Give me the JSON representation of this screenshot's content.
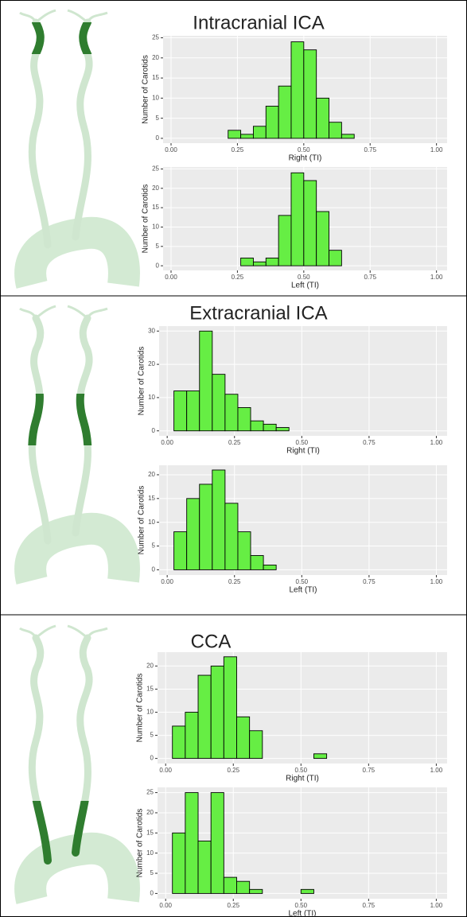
{
  "chart_data": [
    {
      "type": "histogram",
      "title": "Intracranial ICA",
      "xlabel": "Right (TI)",
      "ylabel": "Number of Carotids",
      "bins": [
        0.025,
        0.0725,
        0.12,
        0.1675,
        0.215,
        0.2625,
        0.31,
        0.3575,
        0.405,
        0.4525,
        0.5,
        0.5475,
        0.595,
        0.6425,
        0.69,
        0.7375,
        0.785,
        0.8325,
        0.88,
        0.9275,
        0.975
      ],
      "values": [
        0,
        0,
        0,
        0,
        2,
        1,
        3,
        8,
        13,
        24,
        22,
        10,
        4,
        1,
        0,
        0,
        0,
        0,
        0,
        0
      ],
      "color": "#66ee44",
      "xlim": [
        -0.03,
        1.04
      ],
      "xticks": [
        {
          "value": 0,
          "label": "0.00"
        },
        {
          "value": 0.25,
          "label": "0.25"
        },
        {
          "value": 0.5,
          "label": "0.50"
        },
        {
          "value": 0.75,
          "label": "0.75"
        },
        {
          "value": 1,
          "label": "1.00"
        }
      ],
      "ylim": [
        -1.2,
        25.5
      ],
      "yticks": [
        0,
        5,
        10,
        15,
        20,
        25
      ],
      "grid": true
    },
    {
      "type": "histogram",
      "xlabel": "Left (TI)",
      "ylabel": "Number of Carotids",
      "bins": [
        0.025,
        0.0725,
        0.12,
        0.1675,
        0.215,
        0.2625,
        0.31,
        0.3575,
        0.405,
        0.4525,
        0.5,
        0.5475,
        0.595,
        0.6425,
        0.69,
        0.7375,
        0.785,
        0.8325,
        0.88,
        0.9275,
        0.975
      ],
      "values": [
        0,
        0,
        0,
        0,
        0,
        2,
        1,
        2,
        13,
        24,
        22,
        14,
        4,
        0,
        0,
        0,
        0,
        0,
        0,
        0
      ],
      "color": "#66ee44",
      "xlim": [
        -0.03,
        1.04
      ],
      "xticks": [
        {
          "value": 0,
          "label": "0.00"
        },
        {
          "value": 0.25,
          "label": "0.25"
        },
        {
          "value": 0.5,
          "label": "0.50"
        },
        {
          "value": 0.75,
          "label": "0.75"
        },
        {
          "value": 1,
          "label": "1.00"
        }
      ],
      "ylim": [
        -1.2,
        25.5
      ],
      "yticks": [
        0,
        5,
        10,
        15,
        20,
        25
      ],
      "grid": true
    },
    {
      "type": "histogram",
      "title": "Extracranial ICA",
      "xlabel": "Right (TI)",
      "ylabel": "Number of Carotids",
      "bins": [
        0.025,
        0.0725,
        0.12,
        0.1675,
        0.215,
        0.2625,
        0.31,
        0.3575,
        0.405,
        0.4525,
        0.5,
        0.5475,
        0.595,
        0.6425,
        0.69,
        0.7375,
        0.785,
        0.8325,
        0.88,
        0.9275,
        0.975
      ],
      "values": [
        12,
        12,
        30,
        17,
        11,
        7,
        3,
        2,
        1,
        0,
        0,
        0,
        0,
        0,
        0,
        0,
        0,
        0,
        0,
        0
      ],
      "color": "#66ee44",
      "xlim": [
        -0.03,
        1.04
      ],
      "xticks": [
        {
          "value": 0,
          "label": "0.00"
        },
        {
          "value": 0.25,
          "label": "0.25"
        },
        {
          "value": 0.5,
          "label": "0.50"
        },
        {
          "value": 0.75,
          "label": "0.75"
        },
        {
          "value": 1,
          "label": "1.00"
        }
      ],
      "ylim": [
        -1.5,
        31.5
      ],
      "yticks": [
        0,
        10,
        20,
        30
      ],
      "grid": true
    },
    {
      "type": "histogram",
      "xlabel": "Left (TI)",
      "ylabel": "Number of Carotids",
      "bins": [
        0.025,
        0.0725,
        0.12,
        0.1675,
        0.215,
        0.2625,
        0.31,
        0.3575,
        0.405,
        0.4525,
        0.5,
        0.5475,
        0.595,
        0.6425,
        0.69,
        0.7375,
        0.785,
        0.8325,
        0.88,
        0.9275,
        0.975
      ],
      "values": [
        8,
        15,
        18,
        21,
        14,
        8,
        3,
        1,
        0,
        0,
        0,
        0,
        0,
        0,
        0,
        0,
        0,
        0,
        0,
        0
      ],
      "color": "#66ee44",
      "xlim": [
        -0.03,
        1.04
      ],
      "xticks": [
        {
          "value": 0,
          "label": "0.00"
        },
        {
          "value": 0.25,
          "label": "0.25"
        },
        {
          "value": 0.5,
          "label": "0.50"
        },
        {
          "value": 0.75,
          "label": "0.75"
        },
        {
          "value": 1,
          "label": "1.00"
        }
      ],
      "ylim": [
        -1.1,
        22
      ],
      "yticks": [
        0,
        5,
        10,
        15,
        20
      ],
      "grid": true
    },
    {
      "type": "histogram",
      "title": "CCA",
      "xlabel": "Right (TI)",
      "ylabel": "Number of Carotids",
      "bins": [
        0.025,
        0.0725,
        0.12,
        0.1675,
        0.215,
        0.2625,
        0.31,
        0.3575,
        0.405,
        0.4525,
        0.5,
        0.5475,
        0.595,
        0.6425,
        0.69,
        0.7375,
        0.785,
        0.8325,
        0.88,
        0.9275,
        0.975
      ],
      "values": [
        7,
        10,
        18,
        20,
        22,
        9,
        6,
        0,
        0,
        0,
        0,
        1,
        0,
        0,
        0,
        0,
        0,
        0,
        0,
        0
      ],
      "color": "#66ee44",
      "xlim": [
        -0.03,
        1.04
      ],
      "xticks": [
        {
          "value": 0,
          "label": "0.00"
        },
        {
          "value": 0.25,
          "label": "0.25"
        },
        {
          "value": 0.5,
          "label": "0.50"
        },
        {
          "value": 0.75,
          "label": "0.75"
        },
        {
          "value": 1,
          "label": "1.00"
        }
      ],
      "ylim": [
        -1.1,
        23
      ],
      "yticks": [
        0,
        5,
        10,
        15,
        20
      ],
      "grid": true
    },
    {
      "type": "histogram",
      "xlabel": "Left (TI)",
      "ylabel": "Number of Carotids",
      "bins": [
        0.025,
        0.0725,
        0.12,
        0.1675,
        0.215,
        0.2625,
        0.31,
        0.3575,
        0.405,
        0.4525,
        0.5,
        0.5475,
        0.595,
        0.6425,
        0.69,
        0.7375,
        0.785,
        0.8325,
        0.88,
        0.9275,
        0.975
      ],
      "values": [
        15,
        25,
        13,
        25,
        4,
        3,
        1,
        0,
        0,
        0,
        1,
        0,
        0,
        0,
        0,
        0,
        0,
        0,
        0,
        0
      ],
      "color": "#66ee44",
      "xlim": [
        -0.03,
        1.04
      ],
      "xticks": [
        {
          "value": 0,
          "label": "0.00"
        },
        {
          "value": 0.25,
          "label": "0.25"
        },
        {
          "value": 0.5,
          "label": "0.50"
        },
        {
          "value": 0.75,
          "label": "0.75"
        },
        {
          "value": 1,
          "label": "1.00"
        }
      ],
      "ylim": [
        -1.3,
        26.3
      ],
      "yticks": [
        0,
        5,
        10,
        15,
        20,
        25
      ],
      "grid": true
    }
  ]
}
